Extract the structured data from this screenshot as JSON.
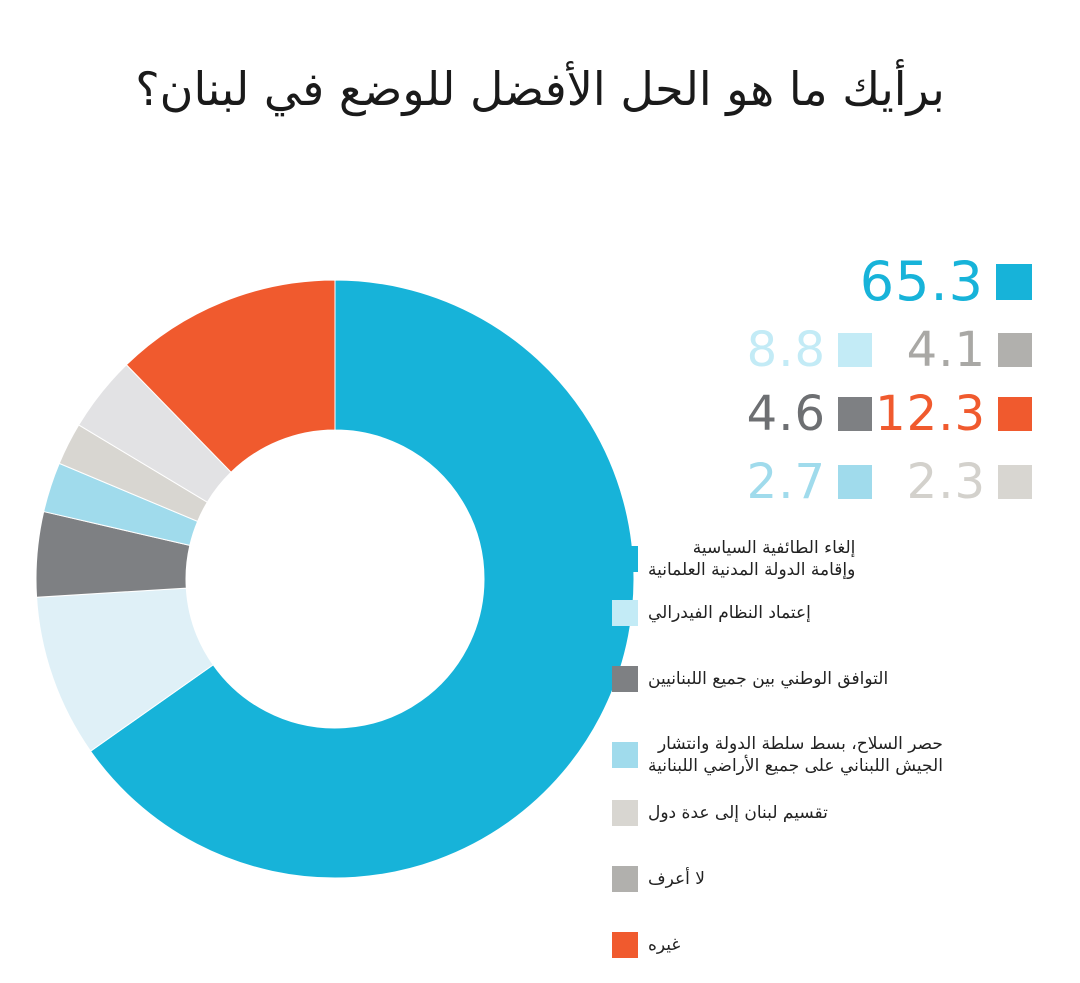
{
  "chart_data": {
    "type": "pie",
    "style": "donut",
    "title": "برأيك ما هو الحل الأفضل للوضع في لبنان؟",
    "unit": "%",
    "slices": [
      {
        "label": "إلغاء الطائفية السياسية\nوإقامة الدولة المدنية العلمانية",
        "value": 65.3,
        "value_text": "65.3",
        "color": "#17b3d9",
        "value_color": "#17b3d9"
      },
      {
        "label": "إعتماد النظام الفيدرالي",
        "value": 8.8,
        "value_text": "8.8",
        "color": "#dff0f7",
        "swatch_color": "#c3ebf6",
        "value_color": "#c3ebf6"
      },
      {
        "label": "التوافق الوطني بين جميع اللبنانيين",
        "value": 4.6,
        "value_text": "4.6",
        "color": "#7e8083",
        "value_color": "#6d6f72"
      },
      {
        "label": "حصر السلاح، بسط سلطة الدولة وانتشار\nالجيش اللبناني على جميع الأراضي اللبنانية",
        "value": 2.7,
        "value_text": "2.7",
        "color": "#a0dbec",
        "value_color": "#a0dbec"
      },
      {
        "label": "تقسيم لبنان إلى عدة دول",
        "value": 2.3,
        "value_text": "2.3",
        "color": "#d8d6d1",
        "value_color": "#d3d1cc"
      },
      {
        "label": "لا أعرف",
        "value": 4.1,
        "value_text": "4.1",
        "color": "#e2e2e4",
        "swatch_color": "#b1b0ad",
        "value_color": "#a9a8a5"
      },
      {
        "label": "غيره",
        "value": 12.3,
        "value_text": "12.3",
        "color": "#f05a2e",
        "value_color": "#f05a2e"
      }
    ]
  }
}
